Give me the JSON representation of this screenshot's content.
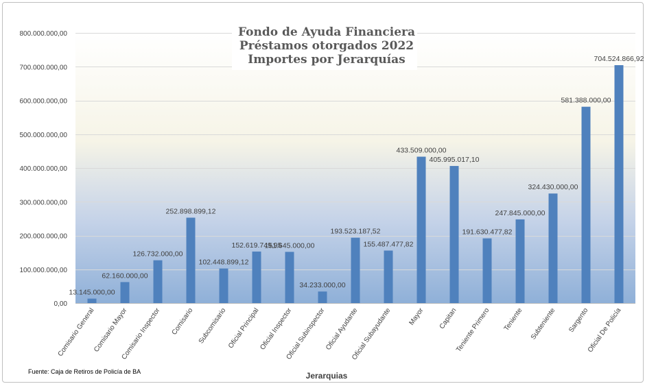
{
  "chart_data": {
    "type": "bar",
    "title_lines": [
      "Fondo de Ayuda Financiera",
      "Préstamos otorgados 2022",
      "Importes por Jerarquías"
    ],
    "xlabel": "Jerarquias",
    "ylabel": "",
    "ylim": [
      0,
      800000000
    ],
    "ytick_values": [
      0,
      100000000,
      200000000,
      300000000,
      400000000,
      500000000,
      600000000,
      700000000,
      800000000
    ],
    "ytick_labels": [
      "0,00",
      "100.000.000,00",
      "200.000.000,00",
      "300.000.000,00",
      "400.000.000,00",
      "500.000.000,00",
      "600.000.000,00",
      "700.000.000,00",
      "800.000.000,00"
    ],
    "categories": [
      "Comisario General",
      "Comisario Mayor",
      "Comisario Inspector",
      "Comisario",
      "Subcomisario",
      "Oficial Principal",
      "Oficial Inspector",
      "Oficial Subinspector",
      "Oficial Ayudante",
      "Oficial Subayudante",
      "Mayor",
      "Capitan",
      "Teniente Primero",
      "Teniente",
      "Subteniente",
      "Sargento",
      "Oficial De Policía"
    ],
    "values": [
      13145000.0,
      62160000.0,
      126732000.0,
      252898899.12,
      102448899.12,
      152619749.95,
      151645000.0,
      34233000.0,
      193523187.52,
      155487477.82,
      433509000.0,
      405995017.1,
      191630477.82,
      247845000.0,
      324430000.0,
      581388000.0,
      704524866.92
    ],
    "data_labels": [
      "13.145.000,00",
      "62.160.000,00",
      "126.732.000,00",
      "252.898.899,12",
      "102.448.899,12",
      "152.619.749,95",
      "151.645.000,00",
      "34.233.000,00",
      "193.523.187,52",
      "155.487.477,82",
      "433.509.000,00",
      "405.995.017,10",
      "191.630.477,82",
      "247.845.000,00",
      "324.430.000,00",
      "581.388.000,00",
      "704.524.866,92"
    ],
    "bar_color": "#4f81bd",
    "grid": true,
    "legend": "none"
  },
  "source_note": "Fuente: Caja de Retiros de Policía de BA"
}
